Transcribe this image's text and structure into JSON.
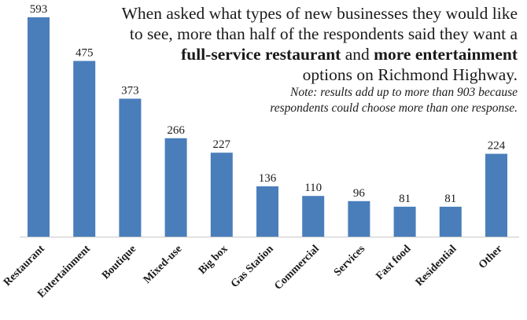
{
  "caption": {
    "line1": "When asked what types of new businesses they would like",
    "line2": "to see, more than half of the respondents said they want a",
    "line3_bold1": "full-service restaurant",
    "line3_mid": " and ",
    "line3_bold2": "more entertainment",
    "line4": "options on Richmond Highway.",
    "note_line1": "Note: results add up to more than 903 because",
    "note_line2": "respondents could choose more than one response."
  },
  "colors": {
    "bar": "#4a7ebb",
    "axis": "#c8c8c8",
    "text": "#1a1a1a"
  },
  "chart_data": {
    "type": "bar",
    "categories": [
      "Restaurant",
      "Entertainment",
      "Boutique",
      "Mixed-use",
      "Big box",
      "Gas Station",
      "Commercial",
      "Services",
      "Fast food",
      "Residential",
      "Other"
    ],
    "values": [
      593,
      475,
      373,
      266,
      227,
      136,
      110,
      96,
      81,
      81,
      224
    ],
    "data_labels": [
      "593",
      "475",
      "373",
      "266",
      "227",
      "136",
      "110",
      "96",
      "81",
      "81",
      "224"
    ],
    "ylim": [
      0,
      600
    ],
    "grid": false,
    "legend": "none"
  }
}
